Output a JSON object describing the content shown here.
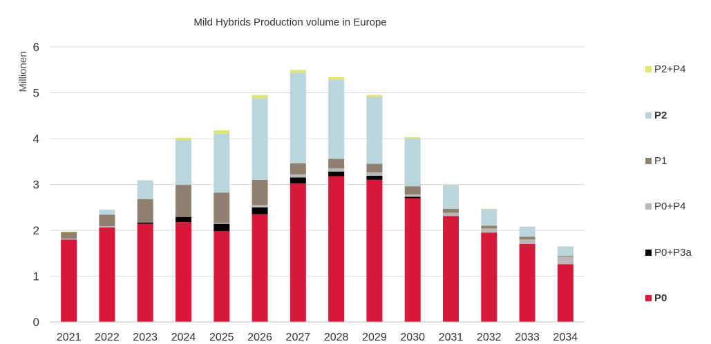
{
  "chart_data": {
    "type": "bar",
    "stacked": true,
    "title": "Mild Hybrids Production volume in Europe",
    "xlabel": "",
    "ylabel": "Millionen",
    "ylim": [
      0,
      6
    ],
    "yticks": [
      "0",
      "1",
      "2",
      "3",
      "4",
      "5",
      "6"
    ],
    "grid": true,
    "legend_position": "right",
    "categories": [
      "2021",
      "2022",
      "2023",
      "2024",
      "2025",
      "2026",
      "2027",
      "2028",
      "2029",
      "2030",
      "2031",
      "2032",
      "2033",
      "2034"
    ],
    "series": [
      {
        "name": "P0",
        "color": "#d7193a",
        "bold": true,
        "values": [
          1.8,
          2.06,
          2.14,
          2.18,
          1.98,
          2.35,
          3.02,
          3.18,
          3.1,
          2.7,
          2.31,
          1.95,
          1.7,
          1.26
        ]
      },
      {
        "name": "P0+P3a",
        "color": "#000000",
        "bold": false,
        "values": [
          0.0,
          0.0,
          0.03,
          0.11,
          0.16,
          0.15,
          0.13,
          0.1,
          0.09,
          0.03,
          0.0,
          0.0,
          0.0,
          0.0
        ]
      },
      {
        "name": "P0+P4",
        "color": "#b8b8b8",
        "bold": false,
        "values": [
          0.02,
          0.03,
          0.0,
          0.0,
          0.02,
          0.05,
          0.07,
          0.07,
          0.07,
          0.05,
          0.07,
          0.09,
          0.1,
          0.16
        ]
      },
      {
        "name": "P1",
        "color": "#8f8070",
        "bold": false,
        "values": [
          0.14,
          0.25,
          0.51,
          0.7,
          0.66,
          0.55,
          0.24,
          0.21,
          0.19,
          0.18,
          0.09,
          0.06,
          0.06,
          0.02
        ]
      },
      {
        "name": "P2",
        "color": "#bad5dc",
        "bold": true,
        "values": [
          0.0,
          0.11,
          0.41,
          0.98,
          1.29,
          1.78,
          1.98,
          1.73,
          1.46,
          1.04,
          0.52,
          0.36,
          0.22,
          0.21
        ]
      },
      {
        "name": "P2+P4",
        "color": "#e1e66e",
        "bold": false,
        "values": [
          0.01,
          0.0,
          0.0,
          0.05,
          0.07,
          0.07,
          0.06,
          0.05,
          0.04,
          0.03,
          0.01,
          0.01,
          0.0,
          0.0
        ]
      }
    ]
  }
}
